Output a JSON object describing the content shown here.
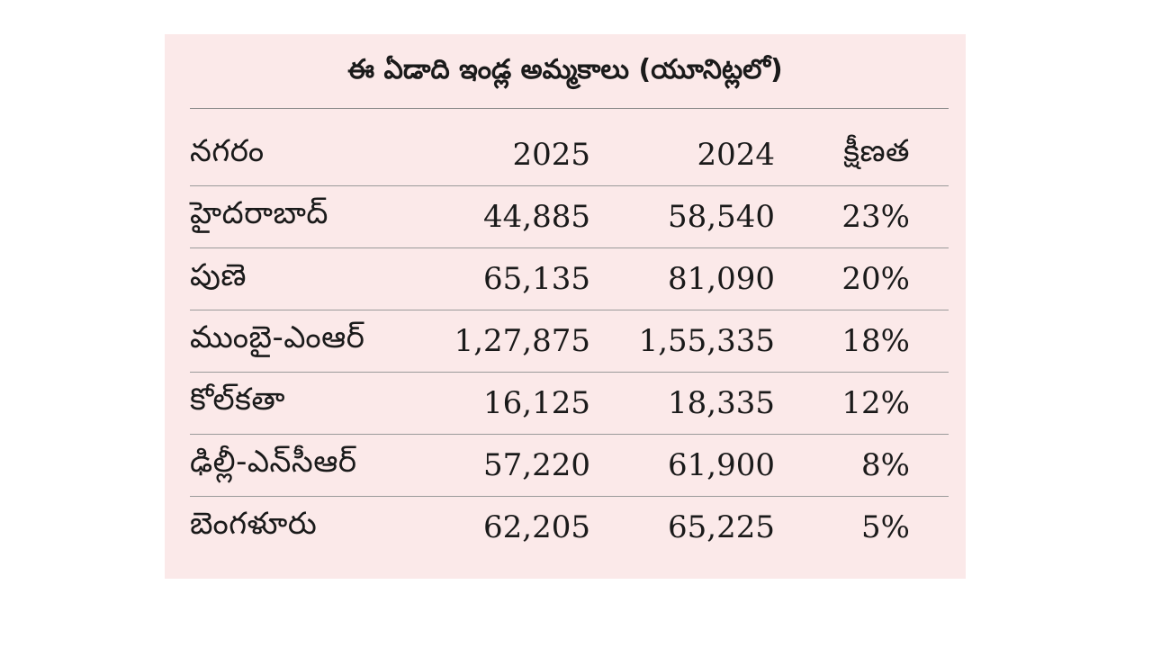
{
  "chart_data": {
    "type": "table",
    "title": "ఈ ఏడాది ఇండ్ల అమ్మకాలు (యూనిట్లలో)",
    "columns": [
      "నగరం",
      "2025",
      "2024",
      "క్షీణత"
    ],
    "rows": [
      {
        "city": "హైదరాబాద్",
        "y2025": "44,885",
        "y2024": "58,540",
        "decline": "23%"
      },
      {
        "city": "పుణె",
        "y2025": "65,135",
        "y2024": "81,090",
        "decline": "20%"
      },
      {
        "city": "ముంబై-ఎంఆర్",
        "y2025": "1,27,875",
        "y2024": "1,55,335",
        "decline": "18%"
      },
      {
        "city": "కోల్‌కతా",
        "y2025": "16,125",
        "y2024": "18,335",
        "decline": "12%"
      },
      {
        "city": "ఢిల్లీ-ఎన్‌సీఆర్",
        "y2025": "57,220",
        "y2024": "61,900",
        "decline": "8%"
      },
      {
        "city": "బెంగళూరు",
        "y2025": "62,205",
        "y2024": "65,225",
        "decline": "5%"
      }
    ]
  },
  "colors": {
    "background": "#fbe9e9",
    "text": "#1a1a1a",
    "rule": "#9a9a9a"
  }
}
